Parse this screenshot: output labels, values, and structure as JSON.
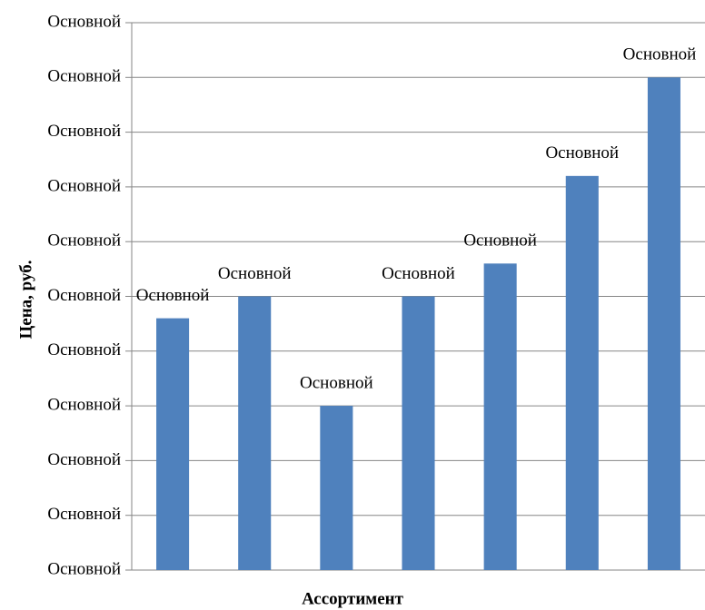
{
  "chart_data": {
    "type": "bar",
    "x_label": "Ассортимент",
    "y_label": "Цена, руб.",
    "categories": [
      null,
      null,
      null,
      null,
      null,
      null,
      null
    ],
    "values": [
      4.6,
      5.0,
      3.0,
      5.0,
      5.6,
      7.2,
      9.0
    ],
    "value_labels": [
      "Основной",
      "Основной",
      "Основной",
      "Основной",
      "Основной",
      "Основной",
      "Основной"
    ],
    "color": "#4f81bd",
    "ylim": [
      0,
      10
    ],
    "yticks": [
      {
        "value": 0,
        "label": "Основной"
      },
      {
        "value": 1,
        "label": "Основной"
      },
      {
        "value": 2,
        "label": "Основной"
      },
      {
        "value": 3,
        "label": "Основной"
      },
      {
        "value": 4,
        "label": "Основной"
      },
      {
        "value": 5,
        "label": "Основной"
      },
      {
        "value": 6,
        "label": "Основной"
      },
      {
        "value": 7,
        "label": "Основной"
      },
      {
        "value": 8,
        "label": "Основной"
      },
      {
        "value": 9,
        "label": "Основной"
      },
      {
        "value": 10,
        "label": "Основной"
      }
    ],
    "grid": true
  }
}
